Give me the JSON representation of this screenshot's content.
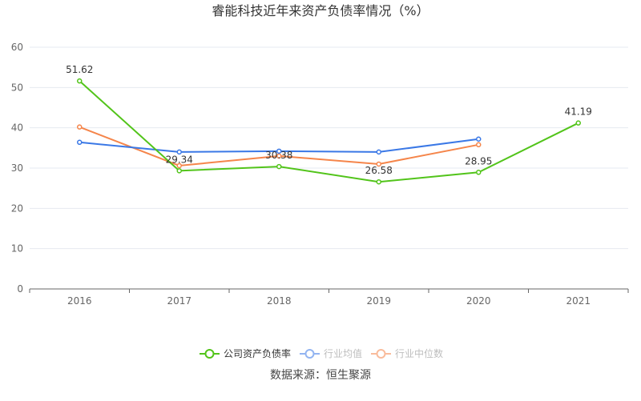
{
  "chart_data": {
    "type": "line",
    "title": "睿能科技近年来资产负债率情况（%）",
    "categories": [
      "2016",
      "2017",
      "2018",
      "2019",
      "2020",
      "2021"
    ],
    "ylim": [
      0,
      60
    ],
    "yticks": [
      0,
      10,
      20,
      30,
      40,
      50,
      60
    ],
    "grid": true,
    "legend_position": "bottom",
    "series": [
      {
        "name": "公司资产负债率",
        "color": "#52c41a",
        "values": [
          51.62,
          29.34,
          30.38,
          26.58,
          28.95,
          41.19
        ],
        "labels": true
      },
      {
        "name": "行业均值",
        "color": "#3a78e6",
        "values": [
          36.4,
          34.0,
          34.2,
          34.0,
          37.2,
          null
        ],
        "labels": false
      },
      {
        "name": "行业中位数",
        "color": "#f5854a",
        "values": [
          40.2,
          30.6,
          33.0,
          31.0,
          35.8,
          null
        ],
        "labels": false
      }
    ],
    "source": "数据来源：恒生聚源"
  }
}
